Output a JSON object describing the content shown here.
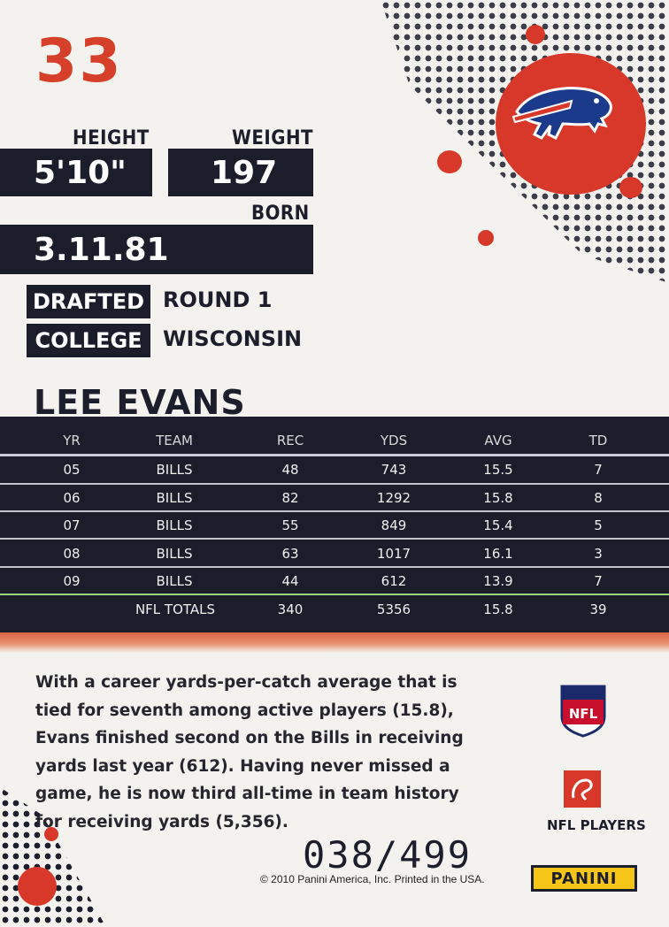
{
  "card_number": "33",
  "team_logo": "buffalo-bills-logo",
  "labels": {
    "height": "HEIGHT",
    "weight": "WEIGHT",
    "born": "BORN",
    "drafted": "DRAFTED",
    "college": "COLLEGE"
  },
  "values": {
    "height": "5'10\"",
    "weight": "197",
    "born": "3.11.81",
    "drafted": "ROUND 1",
    "college": "WISCONSIN"
  },
  "player_name": "LEE EVANS",
  "stats": {
    "headers": [
      "YR",
      "TEAM",
      "REC",
      "YDS",
      "AVG",
      "TD"
    ],
    "rows": [
      [
        "05",
        "BILLS",
        "48",
        "743",
        "15.5",
        "7"
      ],
      [
        "06",
        "BILLS",
        "82",
        "1292",
        "15.8",
        "8"
      ],
      [
        "07",
        "BILLS",
        "55",
        "849",
        "15.4",
        "5"
      ],
      [
        "08",
        "BILLS",
        "63",
        "1017",
        "16.1",
        "3"
      ],
      [
        "09",
        "BILLS",
        "44",
        "612",
        "13.9",
        "7"
      ]
    ],
    "totals": [
      "",
      "NFL TOTALS",
      "340",
      "5356",
      "15.8",
      "39"
    ]
  },
  "blurb": "With a career yards-per-catch average that is tied for seventh among active players (15.8), Evans finished second on the Bills in receiving yards last year (612). Having never missed a game, he is now third all-time in team history for receiving yards (5,356).",
  "serial": "038/499",
  "copyright": "© 2010 Panini America, Inc. Printed in the USA.",
  "nfl_shield_text": "NFL",
  "nfl_players_label": "NFL PLAYERS",
  "panini_label": "PANINI",
  "colors": {
    "navy": "#1b1d2a",
    "red": "#d6402a",
    "bills_blue": "#1b3a8c"
  }
}
